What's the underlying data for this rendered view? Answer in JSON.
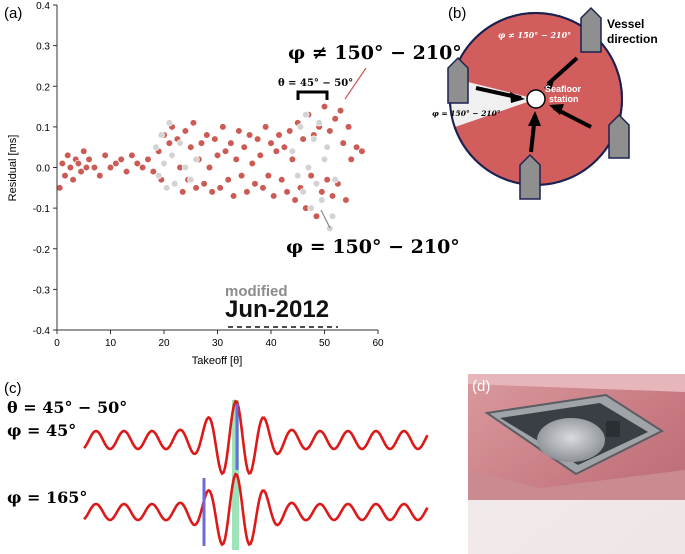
{
  "panel_labels": {
    "a": "(a)",
    "b": "(b)",
    "c": "(c)",
    "d": "(d)"
  },
  "colors": {
    "red_points": "#cc5a55",
    "gray_points": "#d3d3d3",
    "seafloor": "#d15e5d",
    "wedge": "#f0f0f0",
    "wave": "#dd1a1a",
    "marker_blue": "#6b6bde",
    "marker_green": "#7fd9a3"
  },
  "scatter_annotations": {
    "phi_not": "φ ≠ 150° − 210°",
    "theta_range": "θ = 45° − 50°",
    "phi_eq": "φ = 150° − 210°",
    "watermark_top": "modified",
    "watermark_main": "Jun-2012"
  },
  "diagram": {
    "vessel_direction": "Vessel direction",
    "station_line1": "Seafloor",
    "station_line2": "station",
    "phi_not_label": "φ ≠ 150° − 210°",
    "phi_eq_label": "φ = 150° − 210°"
  },
  "waveforms": {
    "theta_label": "θ = 45° − 50°",
    "phi1_label": "φ = 45°",
    "phi2_label": "φ = 165°"
  },
  "chart_data": {
    "type": "scatter",
    "xlabel": "Takeoff [θ]",
    "ylabel": "Residual [ms]",
    "xlim": [
      0,
      60
    ],
    "ylim": [
      -0.4,
      0.4
    ],
    "x_ticks": [
      "0",
      "10",
      "20",
      "30",
      "40",
      "50",
      "60"
    ],
    "y_ticks": [
      "0.4",
      "0.3",
      "0.2",
      "0.1",
      "0.0",
      "-0.1",
      "-0.2",
      "-0.3",
      "-0.4"
    ],
    "grid": false,
    "series": [
      {
        "color": "#cc5a55",
        "marker": "circle",
        "x": [
          0.5,
          1,
          1.5,
          2,
          2.5,
          3,
          3.5,
          4,
          4.5,
          5,
          5.5,
          6,
          7,
          8,
          9,
          10,
          11,
          12,
          13,
          14,
          15,
          16,
          17,
          18,
          19,
          19.5,
          20,
          20.5,
          21,
          21.5,
          22,
          22.5,
          23,
          23.5,
          24,
          24.5,
          25,
          25.5,
          26,
          26.5,
          27,
          27.5,
          28,
          28.5,
          29,
          29.5,
          30,
          30.5,
          31,
          31.5,
          32,
          32.5,
          33,
          33.5,
          34,
          34.5,
          35,
          35.5,
          36,
          36.5,
          37,
          37.5,
          38,
          38.5,
          39,
          39.5,
          40,
          40.5,
          41,
          41.5,
          42,
          42.5,
          43,
          43.5,
          44,
          44.5,
          45,
          45.5,
          46,
          46.5,
          47,
          47.5,
          48,
          48.5,
          49,
          49.5,
          50,
          50.5,
          51,
          51.5,
          52,
          52.5,
          53,
          53.5,
          54,
          54.5,
          55,
          56,
          57
        ],
        "y": [
          -0.05,
          0.01,
          -0.02,
          0.03,
          0.0,
          -0.03,
          0.02,
          0.01,
          -0.01,
          0.04,
          0.0,
          0.02,
          0.0,
          -0.02,
          0.03,
          0.0,
          0.01,
          0.02,
          -0.01,
          0.03,
          0.01,
          0.0,
          0.02,
          -0.01,
          0.04,
          -0.03,
          0.08,
          -0.05,
          0.06,
          0.1,
          -0.04,
          0.07,
          0.0,
          -0.06,
          0.09,
          -0.03,
          0.05,
          0.11,
          -0.05,
          0.02,
          0.06,
          -0.04,
          0.08,
          0.0,
          -0.06,
          0.07,
          0.03,
          -0.05,
          0.1,
          0.04,
          -0.03,
          0.06,
          -0.07,
          0.02,
          0.09,
          -0.02,
          0.05,
          -0.06,
          0.08,
          0.01,
          -0.04,
          0.07,
          0.03,
          -0.05,
          0.1,
          -0.02,
          0.06,
          -0.07,
          0.04,
          0.08,
          -0.03,
          0.05,
          -0.06,
          0.09,
          0.02,
          -0.08,
          0.11,
          -0.05,
          0.07,
          -0.1,
          0.13,
          -0.02,
          0.08,
          -0.12,
          0.1,
          -0.06,
          0.15,
          -0.03,
          0.09,
          -0.07,
          0.12,
          -0.04,
          0.14,
          0.06,
          -0.08,
          0.1,
          0.02,
          0.05,
          0.04
        ]
      },
      {
        "color": "#d3d3d3",
        "marker": "circle",
        "x": [
          18.5,
          19,
          19.5,
          20,
          20.5,
          21,
          21.5,
          22,
          23,
          24,
          25,
          26,
          44,
          45,
          45.5,
          46,
          46.5,
          47,
          47.5,
          48,
          48.5,
          49,
          49.5,
          50,
          50.5,
          51,
          51.5,
          52
        ],
        "y": [
          0.05,
          -0.02,
          0.08,
          0.01,
          -0.05,
          0.11,
          0.03,
          -0.04,
          0.06,
          0.0,
          -0.03,
          0.02,
          0.04,
          -0.02,
          0.1,
          -0.06,
          0.13,
          0.0,
          -0.1,
          0.07,
          -0.04,
          0.11,
          -0.08,
          0.02,
          0.05,
          -0.15,
          -0.12,
          -0.03
        ]
      }
    ]
  }
}
